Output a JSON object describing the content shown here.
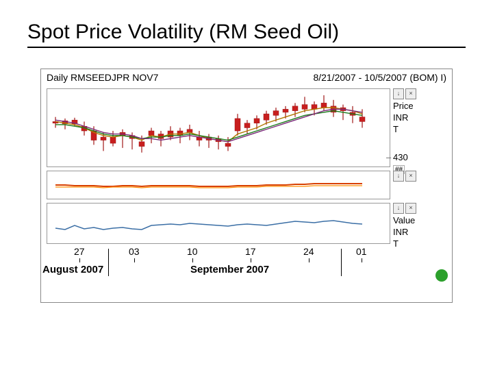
{
  "slide": {
    "title": "Spot Price Volatility (RM Seed Oil)"
  },
  "chart": {
    "header_left": "Daily RMSEEDJPR NOV7",
    "header_right": "8/21/2007 - 10/5/2007 (BOM) I)",
    "x_ticks": [
      "27",
      "03",
      "10",
      "17",
      "24",
      "01"
    ],
    "x_months": [
      "August 2007",
      "September 2007"
    ],
    "status_dot_color": "#2ca02c"
  },
  "panel_price": {
    "type": "candlestick",
    "label1": "Price",
    "label2": "INR",
    "label3": "T",
    "y_ref_label": "430",
    "y_ref_box": "##",
    "background": "#ffffff",
    "grid_color": "#cccccc",
    "up_color": "#c81e1e",
    "down_color": "#c81e1e",
    "wick_color": "#a01818",
    "ma1_color": "#b07800",
    "ma2_color": "#1a7a1a",
    "ma3_color": "#7a2a7a",
    "candles": [
      {
        "x": 12,
        "o": 58,
        "h": 64,
        "l": 50,
        "c": 56
      },
      {
        "x": 26,
        "o": 55,
        "h": 62,
        "l": 48,
        "c": 59
      },
      {
        "x": 40,
        "o": 60,
        "h": 63,
        "l": 52,
        "c": 55
      },
      {
        "x": 54,
        "o": 52,
        "h": 58,
        "l": 40,
        "c": 46
      },
      {
        "x": 68,
        "o": 46,
        "h": 52,
        "l": 28,
        "c": 34
      },
      {
        "x": 82,
        "o": 34,
        "h": 44,
        "l": 20,
        "c": 38
      },
      {
        "x": 96,
        "o": 38,
        "h": 46,
        "l": 26,
        "c": 30
      },
      {
        "x": 110,
        "o": 40,
        "h": 48,
        "l": 24,
        "c": 44
      },
      {
        "x": 124,
        "o": 36,
        "h": 44,
        "l": 22,
        "c": 40
      },
      {
        "x": 138,
        "o": 32,
        "h": 40,
        "l": 18,
        "c": 26
      },
      {
        "x": 152,
        "o": 40,
        "h": 50,
        "l": 30,
        "c": 46
      },
      {
        "x": 166,
        "o": 36,
        "h": 46,
        "l": 26,
        "c": 42
      },
      {
        "x": 180,
        "o": 46,
        "h": 52,
        "l": 34,
        "c": 38
      },
      {
        "x": 194,
        "o": 40,
        "h": 50,
        "l": 30,
        "c": 46
      },
      {
        "x": 208,
        "o": 44,
        "h": 54,
        "l": 34,
        "c": 48
      },
      {
        "x": 222,
        "o": 38,
        "h": 46,
        "l": 26,
        "c": 34
      },
      {
        "x": 236,
        "o": 34,
        "h": 42,
        "l": 24,
        "c": 38
      },
      {
        "x": 250,
        "o": 32,
        "h": 40,
        "l": 22,
        "c": 36
      },
      {
        "x": 264,
        "o": 30,
        "h": 38,
        "l": 20,
        "c": 26
      },
      {
        "x": 278,
        "o": 46,
        "h": 68,
        "l": 40,
        "c": 62
      },
      {
        "x": 292,
        "o": 50,
        "h": 60,
        "l": 42,
        "c": 56
      },
      {
        "x": 306,
        "o": 56,
        "h": 66,
        "l": 48,
        "c": 62
      },
      {
        "x": 320,
        "o": 60,
        "h": 72,
        "l": 54,
        "c": 68
      },
      {
        "x": 334,
        "o": 66,
        "h": 76,
        "l": 58,
        "c": 72
      },
      {
        "x": 348,
        "o": 70,
        "h": 78,
        "l": 62,
        "c": 74
      },
      {
        "x": 362,
        "o": 72,
        "h": 82,
        "l": 64,
        "c": 78
      },
      {
        "x": 376,
        "o": 80,
        "h": 90,
        "l": 70,
        "c": 74
      },
      {
        "x": 390,
        "o": 74,
        "h": 84,
        "l": 66,
        "c": 80
      },
      {
        "x": 404,
        "o": 82,
        "h": 92,
        "l": 72,
        "c": 76
      },
      {
        "x": 418,
        "o": 78,
        "h": 86,
        "l": 64,
        "c": 70
      },
      {
        "x": 432,
        "o": 72,
        "h": 80,
        "l": 60,
        "c": 76
      },
      {
        "x": 446,
        "o": 70,
        "h": 78,
        "l": 56,
        "c": 66
      },
      {
        "x": 460,
        "o": 64,
        "h": 74,
        "l": 50,
        "c": 58
      }
    ],
    "ma1": [
      58,
      56,
      54,
      50,
      44,
      40,
      38,
      40,
      38,
      34,
      40,
      38,
      42,
      42,
      44,
      40,
      36,
      34,
      32,
      42,
      46,
      50,
      56,
      60,
      64,
      68,
      72,
      74,
      76,
      76,
      74,
      72,
      68
    ],
    "ma2": [
      54,
      54,
      52,
      50,
      46,
      42,
      40,
      40,
      38,
      36,
      38,
      38,
      40,
      40,
      42,
      40,
      38,
      36,
      34,
      38,
      42,
      46,
      50,
      54,
      58,
      62,
      66,
      68,
      70,
      72,
      70,
      68,
      66
    ],
    "ma3": [
      60,
      58,
      56,
      52,
      48,
      44,
      42,
      42,
      40,
      36,
      36,
      34,
      36,
      38,
      40,
      38,
      36,
      34,
      32,
      36,
      40,
      44,
      48,
      52,
      56,
      60,
      64,
      68,
      72,
      74,
      74,
      72,
      70
    ]
  },
  "panel_mid": {
    "type": "line",
    "line1_color": "#d84000",
    "line2_color": "#ff8c00",
    "background": "#ffffff",
    "line1": [
      20,
      20,
      19,
      19,
      19,
      18,
      18,
      19,
      19,
      18,
      19,
      19,
      19,
      19,
      19,
      18,
      18,
      18,
      18,
      19,
      19,
      19,
      20,
      20,
      20,
      21,
      21,
      22,
      22,
      22,
      22,
      22,
      22
    ],
    "line2": [
      17,
      17,
      17,
      17,
      17,
      16,
      17,
      17,
      17,
      16,
      17,
      17,
      17,
      17,
      17,
      16,
      16,
      16,
      16,
      17,
      17,
      17,
      18,
      18,
      18,
      18,
      18,
      19,
      19,
      19,
      19,
      19,
      19
    ]
  },
  "panel_value": {
    "type": "line",
    "label1": "Value",
    "label2": "INR",
    "label3": "T",
    "line_color": "#3a6ea5",
    "background": "#ffffff",
    "values": [
      22,
      20,
      26,
      21,
      23,
      20,
      22,
      23,
      21,
      20,
      26,
      27,
      28,
      27,
      29,
      28,
      27,
      26,
      25,
      27,
      28,
      27,
      26,
      28,
      30,
      32,
      31,
      30,
      32,
      33,
      31,
      29,
      28
    ]
  }
}
